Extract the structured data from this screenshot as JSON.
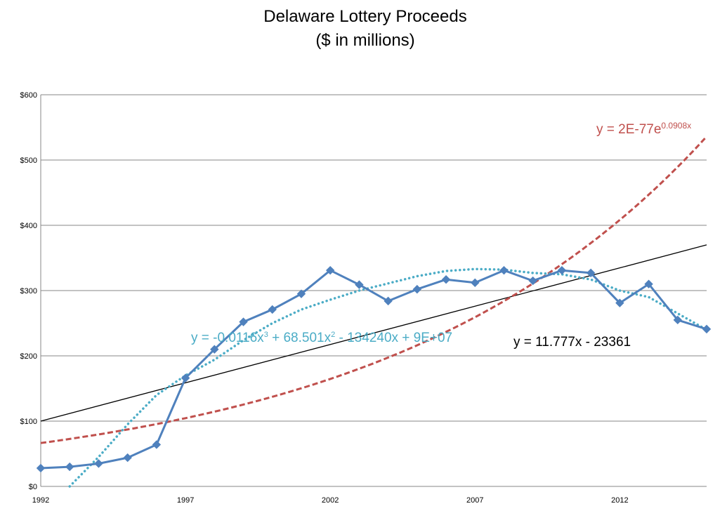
{
  "title": [
    "Delaware Lottery Proceeds",
    "($ in millions)"
  ],
  "chart_data": {
    "type": "line",
    "title": "Delaware Lottery Proceeds ($ in millions)",
    "xlabel": "",
    "ylabel": "",
    "xlim": [
      1992,
      2015
    ],
    "ylim": [
      0,
      600
    ],
    "x_ticks": [
      1992,
      1997,
      2002,
      2007,
      2012
    ],
    "y_ticks": [
      0,
      100,
      200,
      300,
      400,
      500,
      600
    ],
    "y_tick_labels": [
      "$0",
      "$100",
      "$200",
      "$300",
      "$400",
      "$500",
      "$600"
    ],
    "grid": "horizontal",
    "legend": "none",
    "series": [
      {
        "style": "line-markers",
        "color": "#4f81bd",
        "x": [
          1992,
          1993,
          1994,
          1995,
          1996,
          1997,
          1998,
          1999,
          2000,
          2001,
          2002,
          2003,
          2004,
          2005,
          2006,
          2007,
          2008,
          2009,
          2010,
          2011,
          2012,
          2013,
          2014,
          2015
        ],
        "values": [
          28,
          30,
          35,
          44,
          64,
          166,
          210,
          252,
          271,
          295,
          331,
          309,
          284,
          302,
          317,
          312,
          331,
          315,
          331,
          327,
          281,
          310,
          255,
          241
        ]
      }
    ],
    "trendlines": [
      {
        "kind": "linear",
        "color": "#000000",
        "dash": "solid",
        "equation": "y = 11.777x - 23361",
        "points": [
          [
            1992,
            100
          ],
          [
            2015,
            370
          ]
        ]
      },
      {
        "kind": "exponential",
        "color": "#c0504d",
        "dash": "dashed",
        "equation_base": "y = 2E-77e",
        "equation_sup": "0.0908x",
        "a": 66.4,
        "rate": 0.0908,
        "x0": 1992
      },
      {
        "kind": "polynomial",
        "color": "#4bacc6",
        "dash": "dotted",
        "equation_parts": [
          "y = -0.0116x",
          "3",
          " + 68.501x",
          "2",
          " - 134240x + 9E+07"
        ],
        "points": [
          [
            1993,
            0
          ],
          [
            1994,
            45
          ],
          [
            1995,
            95
          ],
          [
            1996,
            140
          ],
          [
            1997,
            170
          ],
          [
            1998,
            194
          ],
          [
            1999,
            224
          ],
          [
            2000,
            250
          ],
          [
            2001,
            271
          ],
          [
            2002,
            286
          ],
          [
            2003,
            300
          ],
          [
            2004,
            311
          ],
          [
            2005,
            322
          ],
          [
            2006,
            330
          ],
          [
            2007,
            333
          ],
          [
            2008,
            332
          ],
          [
            2009,
            327
          ],
          [
            2010,
            325
          ],
          [
            2011,
            317
          ],
          [
            2012,
            300
          ],
          [
            2013,
            290
          ],
          [
            2014,
            265
          ],
          [
            2015,
            240
          ]
        ]
      }
    ]
  }
}
